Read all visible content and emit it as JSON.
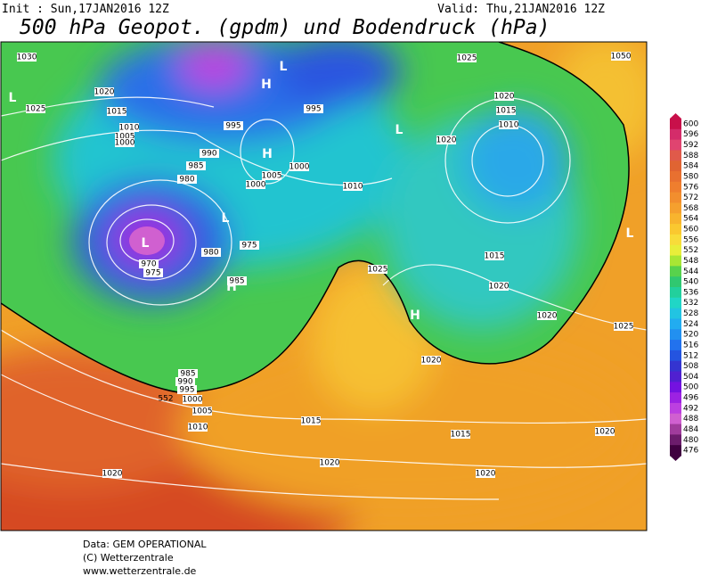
{
  "header": {
    "init": "Init : Sun,17JAN2016 12Z",
    "valid": "Valid: Thu,21JAN2016 12Z",
    "title": "500 hPa Geopot. (gpdm) und Bodendruck (hPa)"
  },
  "colorbar": {
    "labels": [
      600,
      596,
      592,
      588,
      584,
      580,
      576,
      572,
      568,
      564,
      560,
      556,
      552,
      548,
      544,
      540,
      536,
      532,
      528,
      524,
      520,
      516,
      512,
      508,
      504,
      500,
      496,
      492,
      488,
      484,
      480,
      476
    ],
    "colors": [
      "#c8104a",
      "#d42c6a",
      "#e04470",
      "#e05a4a",
      "#e06432",
      "#e87030",
      "#ef7e2e",
      "#f28e2e",
      "#f5a02e",
      "#f8b42e",
      "#fac830",
      "#f8dc3a",
      "#e8ee3a",
      "#a8e634",
      "#58d24c",
      "#30c870",
      "#22d09c",
      "#20d6c6",
      "#22c4e2",
      "#22acf0",
      "#2290f0",
      "#2272ee",
      "#2454e0",
      "#3434d0",
      "#5020d0",
      "#7412e0",
      "#9c22e2",
      "#bc40e0",
      "#d060d0",
      "#a03c9c",
      "#6c1c6c",
      "#400040"
    ]
  },
  "map": {
    "isobar_labels": [
      1030,
      1020,
      1025,
      1015,
      1010,
      1005,
      1000,
      995,
      990,
      985,
      980,
      1005,
      1000,
      1000,
      995,
      1010,
      975,
      980,
      970,
      975,
      985,
      1025,
      1015,
      1020,
      1020,
      1025,
      1020,
      985,
      990,
      995,
      1000,
      1005,
      1010,
      1015,
      1015,
      1020,
      1020,
      1020,
      1020,
      1020,
      1015,
      1010,
      1020,
      1025,
      1050
    ],
    "centers": [
      "L",
      "L",
      "H",
      "H",
      "L",
      "L",
      "L",
      "H",
      "H",
      "L"
    ],
    "contour_label": "552"
  },
  "footer": {
    "lines": [
      "Data: GEM OPERATIONAL",
      "(C) Wetterzentrale",
      "www.wetterzentrale.de"
    ]
  }
}
